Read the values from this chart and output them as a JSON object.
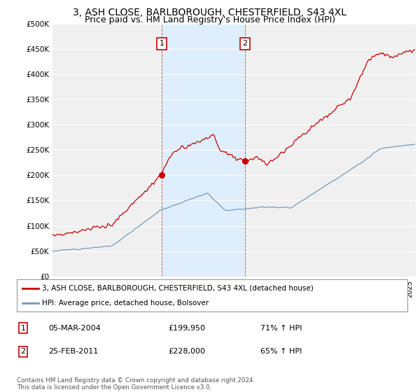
{
  "title": "3, ASH CLOSE, BARLBOROUGH, CHESTERFIELD, S43 4XL",
  "subtitle": "Price paid vs. HM Land Registry's House Price Index (HPI)",
  "title_fontsize": 10,
  "subtitle_fontsize": 9,
  "ylim": [
    0,
    500000
  ],
  "yticks": [
    0,
    50000,
    100000,
    150000,
    200000,
    250000,
    300000,
    350000,
    400000,
    450000,
    500000
  ],
  "ytick_labels": [
    "£0",
    "£50K",
    "£100K",
    "£150K",
    "£200K",
    "£250K",
    "£300K",
    "£350K",
    "£400K",
    "£450K",
    "£500K"
  ],
  "xlim_start": 1995.0,
  "xlim_end": 2025.5,
  "background_color": "#ffffff",
  "plot_bg_color": "#f0f0f0",
  "grid_color": "#ffffff",
  "red_line_color": "#cc0000",
  "blue_line_color": "#7799bb",
  "sale1_date": 2004.17,
  "sale1_price": 199950,
  "sale2_date": 2011.15,
  "sale2_price": 228000,
  "shade_color": "#ddeeff",
  "legend_label_red": "3, ASH CLOSE, BARLBOROUGH, CHESTERFIELD, S43 4XL (detached house)",
  "legend_label_blue": "HPI: Average price, detached house, Bolsover",
  "footer_text": "Contains HM Land Registry data © Crown copyright and database right 2024.\nThis data is licensed under the Open Government Licence v3.0.",
  "table_data": [
    {
      "num": "1",
      "date": "05-MAR-2004",
      "price": "£199,950",
      "hpi": "71% ↑ HPI"
    },
    {
      "num": "2",
      "date": "25-FEB-2011",
      "price": "£228,000",
      "hpi": "65% ↑ HPI"
    }
  ]
}
